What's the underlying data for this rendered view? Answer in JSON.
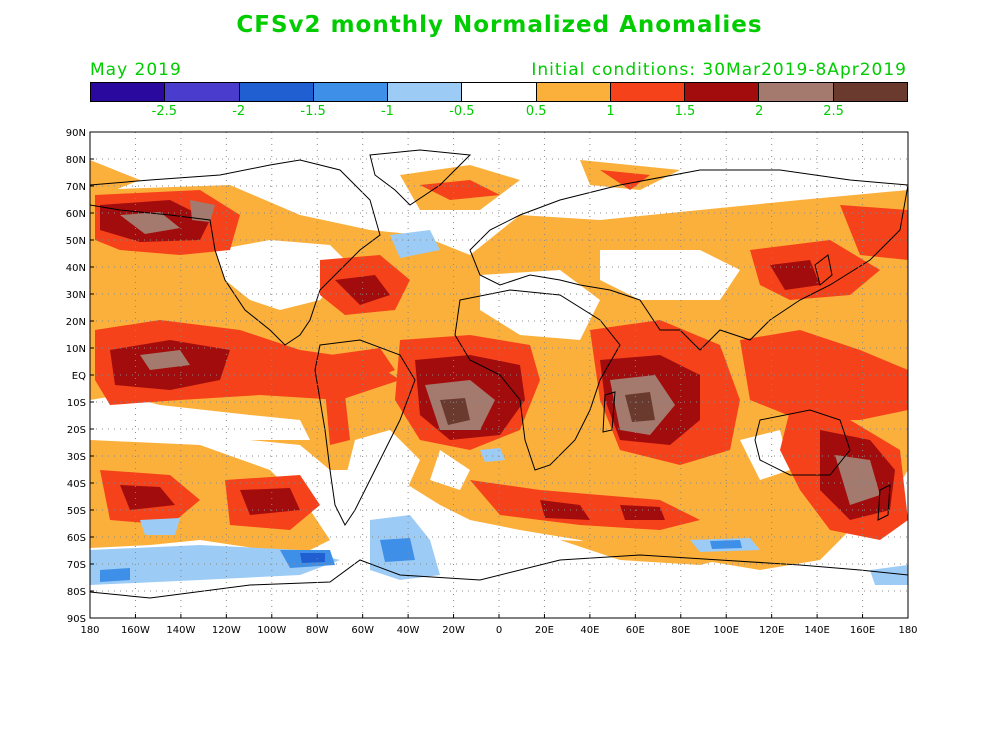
{
  "title": "CFSv2 monthly Normalized Anomalies",
  "valid_month": "May 2019",
  "initial_conditions": "Initial conditions: 30Mar2019-8Apr2019",
  "colorbar": {
    "colors": [
      "#2a0a9e",
      "#4a3ccc",
      "#1f5fd1",
      "#3d8fe8",
      "#9ccbf5",
      "#ffffff",
      "#fbb03b",
      "#f5421a",
      "#a30c0c",
      "#a57a6e",
      "#6b3a2e"
    ],
    "labels": [
      "-2.5",
      "-2",
      "-1.5",
      "-1",
      "-0.5",
      "0.5",
      "1",
      "1.5",
      "2",
      "2.5"
    ]
  },
  "lat_labels": [
    "90N",
    "80N",
    "70N",
    "60N",
    "50N",
    "40N",
    "30N",
    "20N",
    "10N",
    "EQ",
    "10S",
    "20S",
    "30S",
    "40S",
    "50S",
    "60S",
    "70S",
    "80S",
    "90S"
  ],
  "lon_labels": [
    "180",
    "160W",
    "140W",
    "120W",
    "100W",
    "80W",
    "60W",
    "40W",
    "20W",
    "0",
    "20E",
    "40E",
    "60E",
    "80E",
    "100E",
    "120E",
    "140E",
    "160E",
    "180"
  ],
  "colors": {
    "label_green": "#00cc00"
  }
}
